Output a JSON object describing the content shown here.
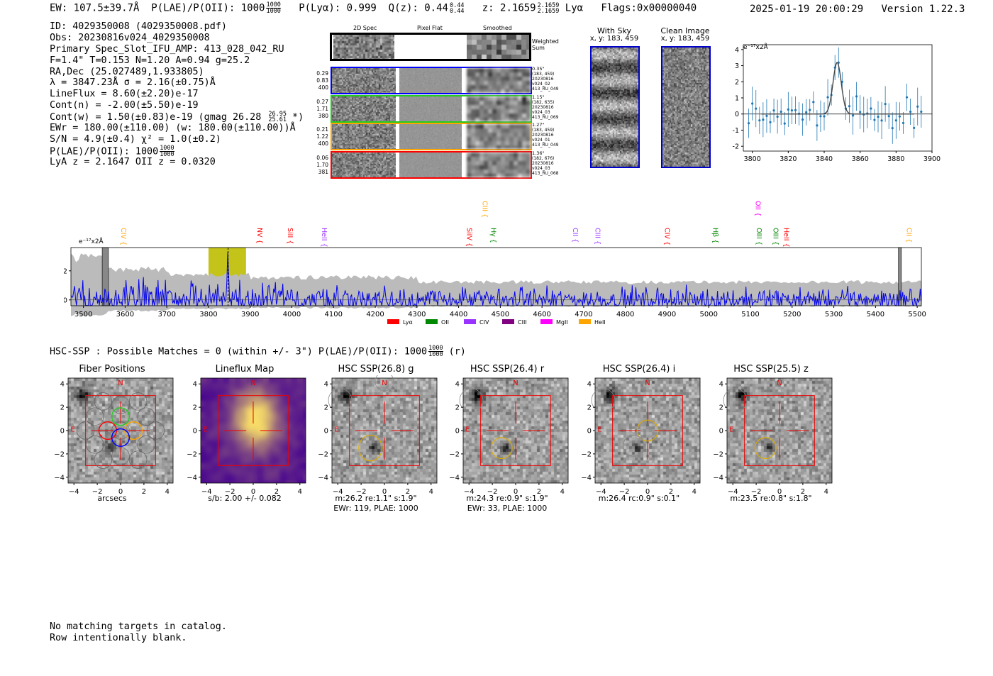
{
  "header": {
    "ew": "EW: 107.5±39.7Å",
    "plae_label": "P(LAE)/P(OII): 1000",
    "plae_hi": "1000",
    "plae_lo": "1000",
    "plya": "P(Lyα): 0.999",
    "qz": "Q(z): 0.44",
    "qz_hi": "0.44",
    "qz_lo": "0.44",
    "z": "z: 2.1659",
    "z_hi": "2.1659",
    "z_lo": "2.1659",
    "z_line": "Lyα",
    "flags": "Flags:0x00000040",
    "datetime": "2025-01-19 20:00:29",
    "version": "Version 1.22.3"
  },
  "info": {
    "id": "ID: 4029350008 (4029350008.pdf)",
    "obs": "Obs: 20230816v024_4029350008",
    "primary": "Primary Spec_Slot_IFU_AMP: 413_028_042_RU",
    "fta": "F=1.4\"  T=0.153  N=1.20  A=0.94  g=25.2",
    "radec": "RA,Dec (25.027489,1.933805)",
    "lambda": "λ = 3847.23Å   σ = 2.16(±0.75)Å",
    "lineflux": "LineFlux = 8.60(±2.20)e-17",
    "contn": "Cont(n) = -2.00(±5.50)e-19",
    "contw": "Cont(w) = 1.50(±0.83)e-19 (gmag 26.28",
    "gmag_hi": "26.95",
    "gmag_lo": "25.61",
    "contw_end": "*)",
    "ewr": "EWr = 180.00(±110.00) (w: 180.00(±110.00))Å",
    "sn": "S/N = 4.9(±0.4)  χ² = 1.0(±0.2)",
    "plae": "P(LAE)/P(OII): 1000",
    "plae_hi": "1000",
    "plae_lo": "1000",
    "lyaz": "LyA z = 2.1647  OII z = 0.0320"
  },
  "spec2d": {
    "col_titles": [
      "2D Spec",
      "Pixel Flat",
      "Smoothed"
    ],
    "weighted_label": "Weighted\nSum",
    "rows": [
      {
        "vals": [
          "0.29",
          "0.83",
          "400"
        ],
        "meta": [
          "0.35\"",
          "(183, 459)",
          "20230816",
          "v024_02",
          "413_RU_049"
        ],
        "color": "#0000ff"
      },
      {
        "vals": [
          "0.27",
          "1.71",
          "380"
        ],
        "meta": [
          "1.15\"",
          "(182, 635)",
          "20230816",
          "v024_03",
          "413_RU_069"
        ],
        "color": "#22cc22"
      },
      {
        "vals": [
          "0.21",
          "1.22",
          "400"
        ],
        "meta": [
          "1.27\"",
          "(183, 459)",
          "20230816",
          "v024_01",
          "413_RU_049"
        ],
        "color": "#ffa500"
      },
      {
        "vals": [
          "0.06",
          "1.70",
          "381"
        ],
        "meta": [
          "1.36\"",
          "(182, 676)",
          "20230816",
          "v024_03",
          "413_RU_068"
        ],
        "color": "#ff0000"
      }
    ]
  },
  "sky": {
    "title": "With Sky",
    "sub": "x, y: 183, 459"
  },
  "clean": {
    "title": "Clean Image",
    "sub": "x, y: 183, 459"
  },
  "zoom_chart": {
    "type": "scatter",
    "ylabel_unit": "e⁻¹⁷x2Å",
    "xlim": [
      3795,
      3900
    ],
    "ylim": [
      -2.3,
      4.3
    ],
    "xticks": [
      3800,
      3820,
      3840,
      3860,
      3880,
      3900
    ],
    "yticks": [
      -2,
      -1,
      0,
      1,
      2,
      3,
      4
    ]
  },
  "full_chart": {
    "type": "line",
    "ylabel_unit": "e⁻¹⁷x2Å",
    "xlim": [
      3470,
      5510
    ],
    "ylim": [
      -0.4,
      3.6
    ],
    "xticks": [
      3500,
      3600,
      3700,
      3800,
      3900,
      4000,
      4100,
      4200,
      4300,
      4400,
      4500,
      4600,
      4700,
      4800,
      4900,
      5000,
      5100,
      5200,
      5300,
      5400,
      5500
    ],
    "yticks": [
      0,
      2
    ],
    "lines": [
      {
        "name": "CIV",
        "wave": 3596,
        "color": "#ffa500",
        "row": 0
      },
      {
        "name": "NV",
        "wave": 3923,
        "color": "#ff0000",
        "row": 0
      },
      {
        "name": "SiII",
        "wave": 3996,
        "color": "#ff0000",
        "row": 0
      },
      {
        "name": "HeII",
        "wave": 4077,
        "color": "#9933ff",
        "row": 0
      },
      {
        "name": "SiIV",
        "wave": 4425,
        "color": "#ff0000",
        "row": 0
      },
      {
        "name": "CIII",
        "wave": 4463,
        "color": "#ffa500",
        "row": 1
      },
      {
        "name": "Hγ",
        "wave": 4483,
        "color": "#008800",
        "row": 0
      },
      {
        "name": "CII",
        "wave": 4680,
        "color": "#9933ff",
        "row": 0
      },
      {
        "name": "CIII",
        "wave": 4733,
        "color": "#9933ff",
        "row": 0
      },
      {
        "name": "CIV",
        "wave": 4900,
        "color": "#ff0000",
        "row": 0
      },
      {
        "name": "Hβ",
        "wave": 5016,
        "color": "#008800",
        "row": 0
      },
      {
        "name": "OII",
        "wave": 5118,
        "color": "#ff00ff",
        "row": 1
      },
      {
        "name": "OIII",
        "wave": 5120,
        "color": "#008800",
        "row": 0
      },
      {
        "name": "OIII",
        "wave": 5160,
        "color": "#008800",
        "row": 0
      },
      {
        "name": "HeII",
        "wave": 5186,
        "color": "#ff0000",
        "row": 0
      },
      {
        "name": "CII",
        "wave": 5480,
        "color": "#ffa500",
        "row": 0
      }
    ],
    "legend": [
      {
        "name": "Lyα",
        "color": "#ff0000"
      },
      {
        "name": "OII",
        "color": "#008800"
      },
      {
        "name": "CIV",
        "color": "#9933ff"
      },
      {
        "name": "CIII",
        "color": "#800080"
      },
      {
        "name": "MgII",
        "color": "#ff00ff"
      },
      {
        "name": "HeII",
        "color": "#ffa500"
      }
    ],
    "highlight": [
      3800,
      3890
    ],
    "line_center": 3847
  },
  "hsc": {
    "summary": "HSC-SSP : Possible Matches = 0 (within +/- 3\")  P(LAE)/P(OII): 1000",
    "summary_hi": "1000",
    "summary_lo": "1000",
    "summary_end": "(r)",
    "compass_n": "N",
    "compass_e": "E",
    "axis_ticks": [
      "-4",
      "-2",
      "0",
      "2",
      "4"
    ],
    "panels": [
      {
        "title": "Fiber Positions",
        "cap1": "arcsecs",
        "cap2": ""
      },
      {
        "title": "Lineflux Map",
        "cap1": "s/b: 2.00 +/- 0.082",
        "cap2": ""
      },
      {
        "title": "HSC SSP(26.8) g",
        "cap1": "m:26.2  re:1.1\"  s:1.9\"",
        "cap2": "EWr: 119, PLAE: 1000"
      },
      {
        "title": "HSC SSP(26.4) r",
        "cap1": "m:24.3  re:0.9\"  s:1.9\"",
        "cap2": "EWr: 33, PLAE: 1000"
      },
      {
        "title": "HSC SSP(26.4) i",
        "cap1": "m:26.4 rc:0.9\"  s:0.1\"",
        "cap2": ""
      },
      {
        "title": "HSC SSP(25.5) z",
        "cap1": "m:23.5  re:0.8\"  s:1.8\"",
        "cap2": ""
      }
    ]
  },
  "footer": {
    "line1": "No matching targets in catalog.",
    "line2": "Row intentionally blank."
  }
}
